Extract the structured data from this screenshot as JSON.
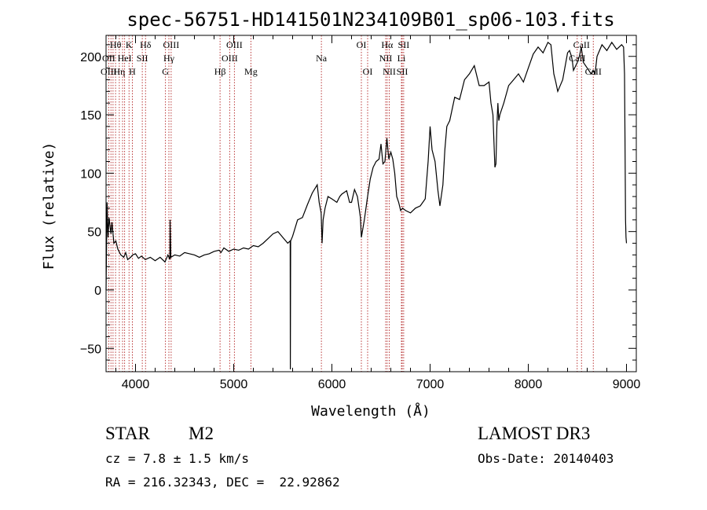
{
  "chart_data": {
    "type": "line",
    "title": "spec-56751-HD141501N234109B01_sp06-103.fits",
    "xlabel": "Wavelength (Å)",
    "ylabel": "Flux (relative)",
    "xlim": [
      3700,
      9100
    ],
    "ylim": [
      -70,
      218
    ],
    "x_ticks": [
      4000,
      5000,
      6000,
      7000,
      8000,
      9000
    ],
    "x_tick_labels": [
      "4000",
      "5000",
      "6000",
      "7000",
      "8000",
      "9000"
    ],
    "y_ticks": [
      -50,
      0,
      50,
      100,
      150,
      200
    ],
    "y_tick_labels": [
      "−50",
      "0",
      "50",
      "100",
      "150",
      "200"
    ],
    "grid": false,
    "series": [
      {
        "name": "spectrum",
        "x": [
          3700,
          3710,
          3720,
          3730,
          3740,
          3750,
          3760,
          3780,
          3800,
          3820,
          3850,
          3880,
          3900,
          3920,
          3950,
          3970,
          4000,
          4030,
          4060,
          4100,
          4150,
          4200,
          4250,
          4300,
          4330,
          4350,
          4352,
          4360,
          4400,
          4450,
          4500,
          4550,
          4600,
          4650,
          4700,
          4750,
          4800,
          4850,
          4870,
          4900,
          4950,
          5000,
          5050,
          5100,
          5150,
          5200,
          5250,
          5300,
          5350,
          5400,
          5450,
          5500,
          5550,
          5575,
          5577,
          5580,
          5600,
          5650,
          5700,
          5750,
          5800,
          5850,
          5870,
          5890,
          5900,
          5910,
          5930,
          5960,
          6000,
          6050,
          6080,
          6100,
          6150,
          6180,
          6200,
          6230,
          6260,
          6290,
          6300,
          6330,
          6360,
          6390,
          6420,
          6450,
          6480,
          6500,
          6520,
          6540,
          6560,
          6570,
          6580,
          6600,
          6620,
          6640,
          6660,
          6680,
          6700,
          6720,
          6750,
          6800,
          6850,
          6900,
          6950,
          6980,
          7000,
          7020,
          7050,
          7080,
          7100,
          7130,
          7150,
          7170,
          7200,
          7250,
          7300,
          7350,
          7400,
          7450,
          7500,
          7550,
          7600,
          7620,
          7640,
          7660,
          7670,
          7680,
          7690,
          7700,
          7710,
          7750,
          7800,
          7850,
          7900,
          7950,
          8000,
          8050,
          8100,
          8150,
          8200,
          8230,
          8260,
          8280,
          8300,
          8350,
          8400,
          8420,
          8440,
          8450,
          8460,
          8500,
          8520,
          8540,
          8560,
          8600,
          8640,
          8660,
          8680,
          8700,
          8750,
          8800,
          8850,
          8900,
          8950,
          8970,
          8980,
          8985,
          8990,
          8995,
          9000
        ],
        "y": [
          0,
          75,
          45,
          62,
          55,
          48,
          58,
          40,
          42,
          35,
          30,
          28,
          32,
          26,
          28,
          30,
          31,
          27,
          29,
          26,
          28,
          25,
          28,
          24,
          30,
          26,
          60,
          28,
          30,
          29,
          32,
          31,
          30,
          28,
          30,
          31,
          33,
          34,
          32,
          36,
          33,
          35,
          34,
          36,
          35,
          38,
          37,
          40,
          44,
          48,
          50,
          45,
          40,
          42,
          -68,
          42,
          46,
          60,
          62,
          73,
          83,
          90,
          75,
          66,
          40,
          60,
          70,
          80,
          78,
          75,
          80,
          82,
          85,
          75,
          75,
          86,
          80,
          62,
          45,
          60,
          78,
          95,
          105,
          110,
          112,
          125,
          108,
          110,
          130,
          120,
          112,
          118,
          112,
          100,
          80,
          75,
          68,
          70,
          68,
          66,
          70,
          72,
          78,
          110,
          140,
          120,
          110,
          85,
          72,
          90,
          120,
          140,
          145,
          165,
          163,
          180,
          185,
          192,
          175,
          175,
          178,
          160,
          150,
          105,
          108,
          140,
          160,
          145,
          150,
          160,
          175,
          180,
          185,
          178,
          190,
          202,
          208,
          203,
          212,
          210,
          185,
          178,
          170,
          180,
          203,
          205,
          200,
          195,
          188,
          195,
          200,
          208,
          195,
          190,
          185,
          188,
          185,
          200,
          210,
          205,
          212,
          206,
          210,
          208,
          185,
          130,
          60,
          45,
          40
        ]
      }
    ],
    "line_labels_row1": [
      "Hθ",
      "K",
      "Hδ",
      "OIII",
      "OIII",
      "OI",
      "Hα",
      "SII",
      "CaII"
    ],
    "line_labels_row2": [
      "OII",
      "HeI",
      "SII",
      "Hγ",
      "OIII",
      "Na",
      "NII",
      "Li",
      "CaII"
    ],
    "line_labels_row3": [
      "OIII",
      "Hη",
      "H",
      "G",
      "Hβ",
      "Mg",
      "OI",
      "NII",
      "SII",
      "CaII"
    ],
    "line_label_wavelengths_row1": [
      3797,
      3934,
      4102,
      4363,
      5007,
      6300,
      6563,
      6731,
      8542
    ],
    "line_label_wavelengths_row2": [
      3727,
      3889,
      4069,
      4340,
      4959,
      5893,
      6548,
      6708,
      8498
    ],
    "line_label_wavelengths_row3": [
      3727,
      3835,
      3968,
      4305,
      4861,
      5175,
      6364,
      6584,
      6716,
      8662
    ],
    "line_marker_wavelengths": [
      3727,
      3750,
      3771,
      3797,
      3835,
      3868,
      3889,
      3934,
      3968,
      4069,
      4102,
      4305,
      4340,
      4363,
      4861,
      4959,
      5007,
      5175,
      5893,
      6300,
      6364,
      6548,
      6563,
      6584,
      6708,
      6716,
      6731,
      8498,
      8542,
      8662
    ]
  },
  "info": {
    "object_class": "STAR",
    "subclass": "M2",
    "survey": "LAMOST DR3",
    "redshift": "cz = 7.8 ± 1.5 km/s",
    "obs_date": "Obs-Date: 20140403",
    "coords": "RA = 216.32343, DEC =  22.92862"
  },
  "colors": {
    "axis": "#000000",
    "spectrum": "#000000",
    "marker": "#b22222"
  }
}
